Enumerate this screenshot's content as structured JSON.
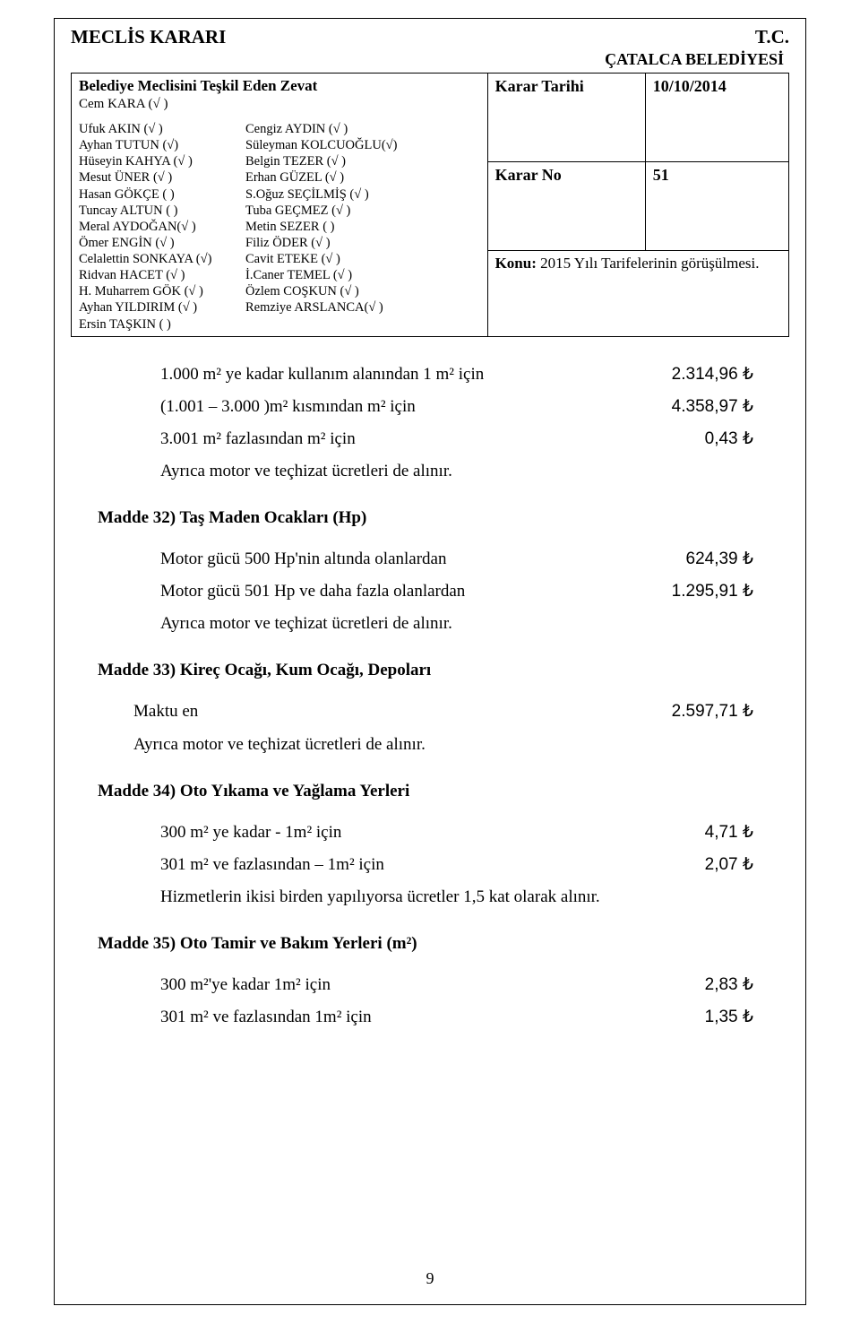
{
  "header": {
    "left_title": "MECLİS KARARI",
    "right_top": "T.C.",
    "right_bottom": "ÇATALCA BELEDİYESİ"
  },
  "table": {
    "zevat_title": "Belediye Meclisini Teşkil Eden Zevat",
    "cem": "Cem KARA (√ )",
    "karar_tarihi_label": "Karar Tarihi",
    "karar_tarihi_value": "10/10/2014",
    "karar_no_label": "Karar No",
    "karar_no_value": "51",
    "konu_label": "Konu:",
    "konu_value": " 2015 Yılı Tarifelerinin görüşülmesi.",
    "members_left": [
      "Ufuk AKIN  (√ )",
      "Ayhan TUTUN (√)",
      "Hüseyin KAHYA  (√ )",
      "Mesut ÜNER (√  )",
      "Hasan GÖKÇE (  )",
      "Tuncay ALTUN  (  )",
      "Meral AYDOĞAN(√ )",
      "Ömer ENGİN (√ )",
      "Celalettin SONKAYA (√)",
      "Ridvan HACET  (√ )",
      "H. Muharrem GÖK (√ )",
      "Ayhan YILDIRIM  (√ )",
      "Ersin TAŞKIN  (  )"
    ],
    "members_right": [
      "Cengiz AYDIN  (√ )",
      "Süleyman KOLCUOĞLU(√)",
      "Belgin TEZER  (√ )",
      "Erhan GÜZEL  (√ )",
      "S.Oğuz SEÇİLMİŞ (√  )",
      "Tuba GEÇMEZ  (√ )",
      "Metin SEZER  (  )",
      "Filiz ÖDER   (√ )",
      "Cavit ETEKE  (√ )",
      "İ.Caner TEMEL (√ )",
      "Özlem COŞKUN (√ )",
      "Remziye ARSLANCA(√ )",
      ""
    ]
  },
  "body": {
    "l1_label": "1.000 m² ye kadar kullanım alanından 1 m² için",
    "l1_val": "2.314,96 ₺",
    "l2_label": "(1.001 – 3.000 )m² kısmından m² için",
    "l2_val": "4.358,97 ₺",
    "l3_label": "3.001 m² fazlasından m² için",
    "l3_val": "0,43 ₺",
    "note": "Ayrıca motor ve teçhizat ücretleri de alınır.",
    "m32_head": "Madde 32) Taş Maden Ocakları (Hp)",
    "m32_a_label": "Motor gücü 500 Hp'nin altında olanlardan",
    "m32_a_val": "624,39 ₺",
    "m32_b_label": "Motor gücü 501 Hp ve daha fazla olanlardan",
    "m32_b_val": "1.295,91 ₺",
    "m33_head": "Madde 33) Kireç Ocağı, Kum Ocağı, Depoları",
    "m33_label": "Maktu en",
    "m33_val": "2.597,71 ₺",
    "m34_head": "Madde 34) Oto Yıkama ve Yağlama Yerleri",
    "m34_a_label": "300 m² ye kadar - 1m² için",
    "m34_a_val": "4,71 ₺",
    "m34_b_label": "301 m² ve fazlasından – 1m² için",
    "m34_b_val": "2,07 ₺",
    "m34_note": "Hizmetlerin ikisi birden yapılıyorsa ücretler 1,5 kat olarak alınır.",
    "m35_head": "Madde 35) Oto Tamir ve Bakım Yerleri (m²)",
    "m35_a_label": "300 m²'ye kadar 1m² için",
    "m35_a_val": "2,83 ₺",
    "m35_b_label": "301 m² ve fazlasından 1m² için",
    "m35_b_val": "1,35 ₺"
  },
  "page_number": "9"
}
